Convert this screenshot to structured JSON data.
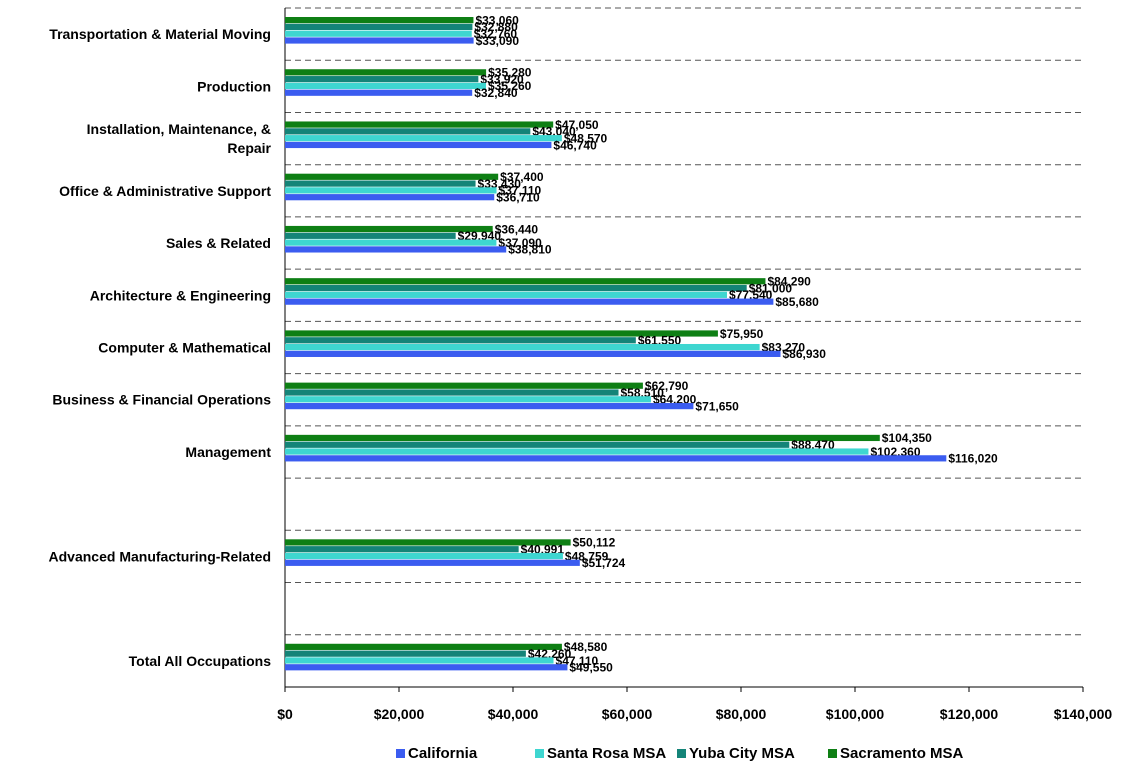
{
  "chart_data": {
    "type": "bar",
    "orientation": "horizontal",
    "categories": [
      [
        "Transportation & Material Moving"
      ],
      [
        "Production"
      ],
      [
        "Installation, Maintenance, &",
        "Repair"
      ],
      [
        "Office & Administrative Support"
      ],
      [
        "Sales & Related"
      ],
      [
        "Architecture & Engineering"
      ],
      [
        "Computer & Mathematical"
      ],
      [
        "Business & Financial Operations"
      ],
      [
        "Management"
      ],
      [],
      [
        "Advanced Manufacturing-Related"
      ],
      [],
      [
        "Total All Occupations"
      ]
    ],
    "series": [
      {
        "name": "California",
        "color": "#3B5CF0",
        "values": [
          33090,
          32840,
          46740,
          36710,
          38810,
          85680,
          86930,
          71650,
          116020,
          null,
          51724,
          null,
          49550
        ],
        "labels": [
          "$33,090",
          "$32,840",
          "$46,740",
          "$36,710",
          "$38,810",
          "$85,680",
          "$86,930",
          "$71,650",
          "$116,020",
          null,
          "$51,724",
          null,
          "$49,550"
        ]
      },
      {
        "name": "Santa Rosa MSA",
        "color": "#3ED6D0",
        "values": [
          32760,
          35260,
          48570,
          37110,
          37090,
          77540,
          83270,
          64200,
          102360,
          null,
          48759,
          null,
          47110
        ],
        "labels": [
          "$32,760",
          "$35,260",
          "$48,570",
          "$37,110",
          "$37,090",
          "$77,540",
          "$83,270",
          "$64,200",
          "$102,360",
          null,
          "$48,759",
          null,
          "$47,110"
        ]
      },
      {
        "name": "Yuba City MSA",
        "color": "#148478",
        "values": [
          32880,
          33920,
          43040,
          33430,
          29940,
          81000,
          61550,
          58510,
          88470,
          null,
          40991,
          null,
          42260
        ],
        "labels": [
          "$32,880",
          "$33,920",
          "$43,040",
          "$33,430",
          "$29,940",
          "$81,000",
          "$61,550",
          "$58,510",
          "$88,470",
          null,
          "$40,991",
          null,
          "$42,260"
        ]
      },
      {
        "name": "Sacramento MSA",
        "color": "#0E7F14",
        "values": [
          33060,
          35280,
          47050,
          37400,
          36440,
          84290,
          75950,
          62790,
          104350,
          null,
          50112,
          null,
          48580
        ],
        "labels": [
          "$33,060",
          "$35,280",
          "$47,050",
          "$37,400",
          "$36,440",
          "$84,290",
          "$75,950",
          "$62,790",
          "$104,350",
          null,
          "$50,112",
          null,
          "$48,580"
        ]
      }
    ],
    "xlim": [
      0,
      140000
    ],
    "x_ticks": [
      "$0",
      "$20,000",
      "$40,000",
      "$60,000",
      "$80,000",
      "$100,000",
      "$120,000",
      "$140,000"
    ],
    "title": "",
    "xlabel": "",
    "ylabel": "",
    "grid": "dashed horizontal separators between categories",
    "legend": {
      "placement": "bottom-center"
    }
  }
}
